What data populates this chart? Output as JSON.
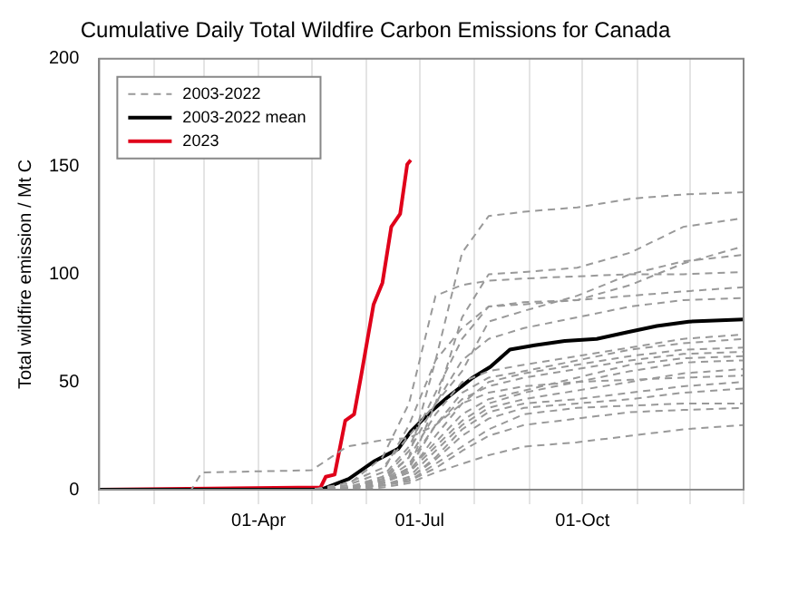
{
  "chart_data": {
    "type": "line",
    "title": "Cumulative Daily Total Wildfire Carbon Emissions for Canada",
    "ylabel": "Total wildfire emission / Mt C",
    "x": [
      "--01-01",
      "--05-01",
      "--05-21",
      "--06-10",
      "--06-25",
      "--07-10",
      "--07-25",
      "--08-09",
      "--08-29",
      "--09-28",
      "--10-28",
      "--11-27",
      "--12-31"
    ],
    "xlim": [
      "--01-01",
      "--12-31"
    ],
    "xticks": [
      {
        "value": "--01-01",
        "label": null
      },
      {
        "value": "--02-01",
        "label": null
      },
      {
        "value": "--03-01",
        "label": null
      },
      {
        "value": "--04-01",
        "label": "01-Apr"
      },
      {
        "value": "--05-01",
        "label": null
      },
      {
        "value": "--06-01",
        "label": null
      },
      {
        "value": "--07-01",
        "label": "01-Jul"
      },
      {
        "value": "--08-01",
        "label": null
      },
      {
        "value": "--09-01",
        "label": null
      },
      {
        "value": "--10-01",
        "label": "01-Oct"
      },
      {
        "value": "--11-01",
        "label": null
      },
      {
        "value": "--12-01",
        "label": null
      },
      {
        "value": "--12-31",
        "label": null
      }
    ],
    "ylim": [
      0,
      200
    ],
    "yticks": [
      0,
      50,
      100,
      150,
      200
    ],
    "grid": "x",
    "legend": "top left",
    "series": [
      {
        "name": "2003-2022",
        "color": "#999999",
        "line_style": "dashed",
        "values": [
          0,
          0,
          1,
          5,
          15,
          60,
          110,
          127,
          129,
          131,
          135,
          137,
          138
        ]
      },
      {
        "color": "#999999",
        "line_style": "dashed",
        "values": [
          0,
          0,
          1,
          4,
          10,
          40,
          80,
          100,
          101,
          103,
          110,
          122,
          126
        ]
      },
      {
        "color": "#999999",
        "line_style": "dashed",
        "values": [
          0,
          0,
          2,
          8,
          30,
          60,
          75,
          85,
          86,
          88,
          95,
          105,
          113
        ]
      },
      {
        "color": "#999999",
        "line_style": "dashed",
        "values": [
          0,
          0,
          3,
          10,
          25,
          40,
          55,
          78,
          83,
          90,
          100,
          106,
          109
        ]
      },
      {
        "color": "#999999",
        "line_style": "dashed",
        "values": [
          0,
          0,
          2,
          15,
          40,
          90,
          95,
          97,
          98,
          99,
          100,
          100,
          101
        ]
      },
      {
        "color": "#999999",
        "line_style": "dashed",
        "values": [
          0,
          0,
          1,
          6,
          20,
          45,
          70,
          85,
          87,
          88,
          90,
          92,
          94
        ]
      },
      {
        "color": "#999999",
        "line_style": "dashed",
        "values": [
          0,
          0,
          1,
          5,
          18,
          40,
          60,
          70,
          75,
          80,
          85,
          88,
          89
        ]
      },
      {
        "color": "#999999",
        "line_style": "dashed",
        "values": [
          0,
          0,
          1,
          4,
          15,
          35,
          50,
          55,
          58,
          62,
          66,
          70,
          72
        ]
      },
      {
        "color": "#999999",
        "line_style": "dashed",
        "values": [
          0,
          0,
          1,
          3,
          10,
          30,
          45,
          52,
          55,
          60,
          65,
          68,
          70
        ]
      },
      {
        "color": "#999999",
        "line_style": "dashed",
        "values": [
          0,
          0,
          1,
          3,
          8,
          25,
          40,
          50,
          54,
          58,
          62,
          65,
          66
        ]
      },
      {
        "color": "#999999",
        "line_style": "dashed",
        "values": [
          0,
          0,
          1,
          4,
          12,
          30,
          42,
          48,
          52,
          56,
          60,
          63,
          64
        ]
      },
      {
        "color": "#999999",
        "line_style": "dashed",
        "values": [
          0,
          0,
          1,
          3,
          9,
          22,
          35,
          42,
          46,
          52,
          58,
          61,
          62
        ]
      },
      {
        "color": "#999999",
        "line_style": "dashed",
        "values": [
          0,
          0,
          1,
          3,
          8,
          20,
          32,
          40,
          45,
          50,
          55,
          59,
          60
        ]
      },
      {
        "color": "#999999",
        "line_style": "dashed",
        "values": [
          0,
          0,
          1,
          2,
          6,
          18,
          30,
          38,
          42,
          46,
          50,
          54,
          56
        ]
      },
      {
        "color": "#999999",
        "line_style": "dashed",
        "values": [
          0,
          0,
          1,
          2,
          5,
          15,
          28,
          36,
          40,
          42,
          45,
          48,
          50
        ]
      },
      {
        "color": "#999999",
        "line_style": "dashed",
        "values": [
          0,
          0,
          1,
          2,
          5,
          14,
          25,
          33,
          38,
          40,
          42,
          45,
          47
        ]
      },
      {
        "color": "#999999",
        "line_style": "dashed",
        "values": [
          0,
          0,
          1,
          2,
          4,
          12,
          20,
          28,
          35,
          38,
          39,
          40,
          40
        ]
      },
      {
        "color": "#999999",
        "line_style": "dashed",
        "values": [
          0,
          0,
          0,
          2,
          4,
          10,
          18,
          25,
          30,
          33,
          36,
          37,
          38
        ]
      },
      {
        "color": "#999999",
        "line_style": "dashed",
        "values": [
          0,
          0,
          0,
          1,
          3,
          8,
          12,
          16,
          20,
          22,
          25,
          28,
          30
        ]
      },
      {
        "color": "#999999",
        "line_style": "dashed",
        "x": [
          "--01-01",
          "--02-22",
          "--02-28",
          "--05-01",
          "--05-21",
          "--06-10",
          "--06-25",
          "--07-10",
          "--07-25",
          "--08-09",
          "--08-29",
          "--09-28",
          "--10-28",
          "--11-27",
          "--12-31"
        ],
        "values": [
          0,
          0,
          8,
          9,
          20,
          23,
          24,
          30,
          40,
          45,
          48,
          50,
          51,
          52,
          53
        ]
      },
      {
        "name": "2003-2022 mean",
        "color": "#000000",
        "line_style": "solid",
        "x": [
          "--01-01",
          "--05-06",
          "--05-22",
          "--06-05",
          "--06-19",
          "--06-26",
          "--07-07",
          "--07-17",
          "--07-31",
          "--08-10",
          "--08-21",
          "--09-04",
          "--09-21",
          "--10-09",
          "--10-26",
          "--11-12",
          "--11-30",
          "--12-31"
        ],
        "values": [
          0,
          0,
          5,
          13,
          19,
          27,
          36,
          43,
          52,
          57,
          65,
          67,
          69,
          70,
          73,
          76,
          78,
          79
        ]
      },
      {
        "name": "2023",
        "color": "#e0001a",
        "line_style": "solid",
        "x": [
          "--01-01",
          "--05-06",
          "--05-09",
          "--05-14",
          "--05-20",
          "--05-25",
          "--05-29",
          "--06-05",
          "--06-10",
          "--06-15",
          "--06-20",
          "--06-24",
          "--06-26"
        ],
        "values": [
          0,
          1,
          6,
          7,
          32,
          35,
          53,
          86,
          96,
          122,
          128,
          151,
          153
        ]
      }
    ]
  }
}
